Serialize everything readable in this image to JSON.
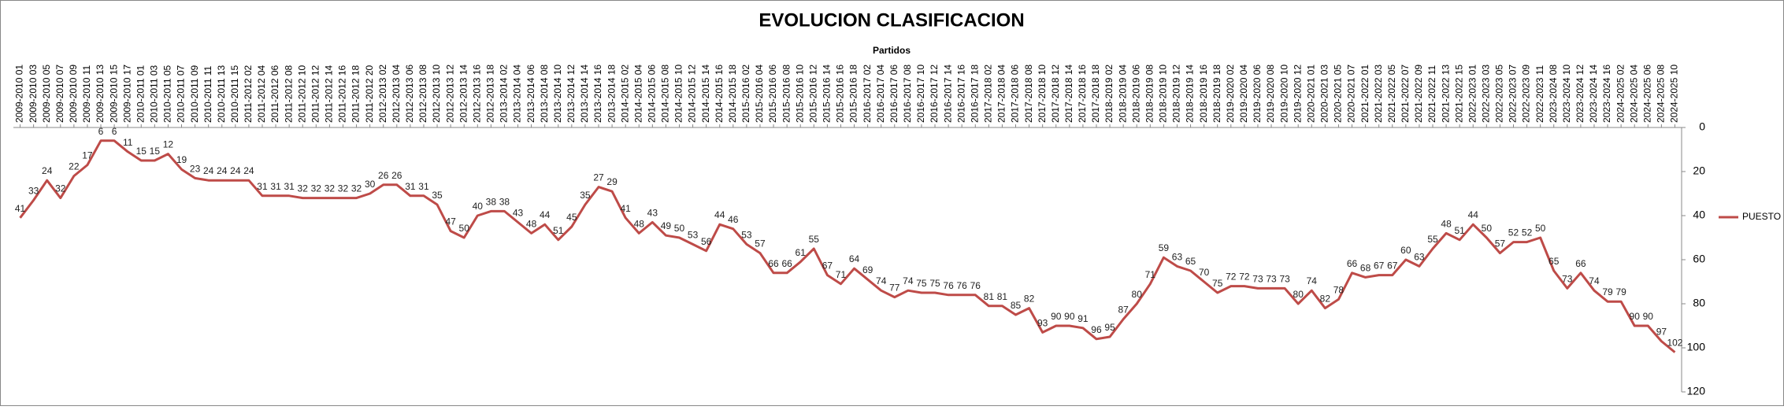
{
  "chart_data": {
    "type": "line",
    "title": "EVOLUCION CLASIFICACION",
    "x_label": "Partidos",
    "categories": [
      "2009-2010 01",
      "2009-2010 03",
      "2009-2010 05",
      "2009-2010 07",
      "2009-2010 09",
      "2009-2010 11",
      "2009-2010 13",
      "2009-2010 15",
      "2009-2010 17",
      "2010-2011 01",
      "2010-2011 03",
      "2010-2011 05",
      "2010-2011 07",
      "2010-2011 09",
      "2010-2011 11",
      "2010-2011 13",
      "2010-2011 15",
      "2011-2012 02",
      "2011-2012 04",
      "2011-2012 06",
      "2011-2012 08",
      "2011-2012 10",
      "2011-2012 12",
      "2011-2012 14",
      "2011-2012 16",
      "2011-2012 18",
      "2011-2012 20",
      "2012-2013 02",
      "2012-2013 04",
      "2012-2013 06",
      "2012-2013 08",
      "2012-2013 10",
      "2012-2013 12",
      "2012-2013 14",
      "2012-2013 16",
      "2012-2013 18",
      "2013-2014 02",
      "2013-2014 04",
      "2013-2014 06",
      "2013-2014 08",
      "2013-2014 10",
      "2013-2014 12",
      "2013-2014 14",
      "2013-2014 16",
      "2013-2014 18",
      "2014-2015 02",
      "2014-2015 04",
      "2014-2015 06",
      "2014-2015 08",
      "2014-2015 10",
      "2014-2015 12",
      "2014-2015 14",
      "2014-2015 16",
      "2014-2015 18",
      "2015-2016 02",
      "2015-2016 04",
      "2015-2016 06",
      "2015-2016 08",
      "2015-2016 10",
      "2015-2016 12",
      "2015-2016 14",
      "2015-2016 16",
      "2015-2016 18",
      "2016-2017 02",
      "2016-2017 04",
      "2016-2017 06",
      "2016-2017 08",
      "2016-2017 10",
      "2016-2017 12",
      "2016-2017 14",
      "2016-2017 16",
      "2016-2017 18",
      "2017-2018 02",
      "2017-2018 04",
      "2017-2018 06",
      "2017-2018 08",
      "2017-2018 10",
      "2017-2018 12",
      "2017-2018 14",
      "2017-2018 16",
      "2017-2018 18",
      "2018-2019 02",
      "2018-2019 04",
      "2018-2019 06",
      "2018-2019 08",
      "2018-2019 10",
      "2018-2019 12",
      "2018-2019 14",
      "2018-2019 16",
      "2018-2019 18",
      "2019-2020 02",
      "2019-2020 04",
      "2019-2020 06",
      "2019-2020 08",
      "2019-2020 10",
      "2019-2020 12",
      "2020-2021 01",
      "2020-2021 03",
      "2020-2021 05",
      "2020-2021 07",
      "2021-2022 01",
      "2021-2022 03",
      "2021-2022 05",
      "2021-2022 07",
      "2021-2022 09",
      "2021-2022 11",
      "2021-2022 13",
      "2021-2022 15",
      "2022-2023 01",
      "2022-2023 03",
      "2022-2023 05",
      "2022-2023 07",
      "2022-2023 09",
      "2022-2023 11",
      "2023-2024 08",
      "2023-2024 10",
      "2023-2024 12",
      "2023-2024 14",
      "2023-2024 16",
      "2024-2025 02",
      "2024-2025 04",
      "2024-2025 06",
      "2024-2025 08",
      "2024-2025 10"
    ],
    "series": [
      {
        "name": "PUESTO",
        "color": "#be4b48",
        "values": [
          41,
          33,
          24,
          32,
          22,
          17,
          6,
          6,
          11,
          15,
          15,
          12,
          19,
          23,
          24,
          24,
          24,
          24,
          31,
          31,
          31,
          32,
          32,
          32,
          32,
          32,
          30,
          26,
          26,
          31,
          31,
          35,
          47,
          50,
          40,
          38,
          38,
          43,
          48,
          44,
          51,
          45,
          35,
          27,
          29,
          41,
          48,
          43,
          49,
          50,
          53,
          56,
          44,
          46,
          53,
          57,
          66,
          66,
          61,
          55,
          67,
          71,
          64,
          69,
          74,
          77,
          74,
          75,
          75,
          76,
          76,
          76,
          81,
          81,
          85,
          82,
          93,
          90,
          90,
          91,
          96,
          95,
          87,
          80,
          71,
          59,
          63,
          65,
          70,
          75,
          72,
          72,
          73,
          73,
          73,
          80,
          74,
          82,
          78,
          66,
          68,
          67,
          67,
          60,
          63,
          55,
          48,
          51,
          44,
          50,
          57,
          52,
          52,
          50,
          65,
          73,
          66,
          74,
          79,
          79,
          90,
          90,
          97,
          102
        ]
      }
    ],
    "ylim": [
      0,
      120
    ],
    "yticks": [
      0,
      20,
      40,
      60,
      80,
      100,
      120
    ],
    "y_reversed": true,
    "data_labels": true,
    "legend": "right"
  }
}
